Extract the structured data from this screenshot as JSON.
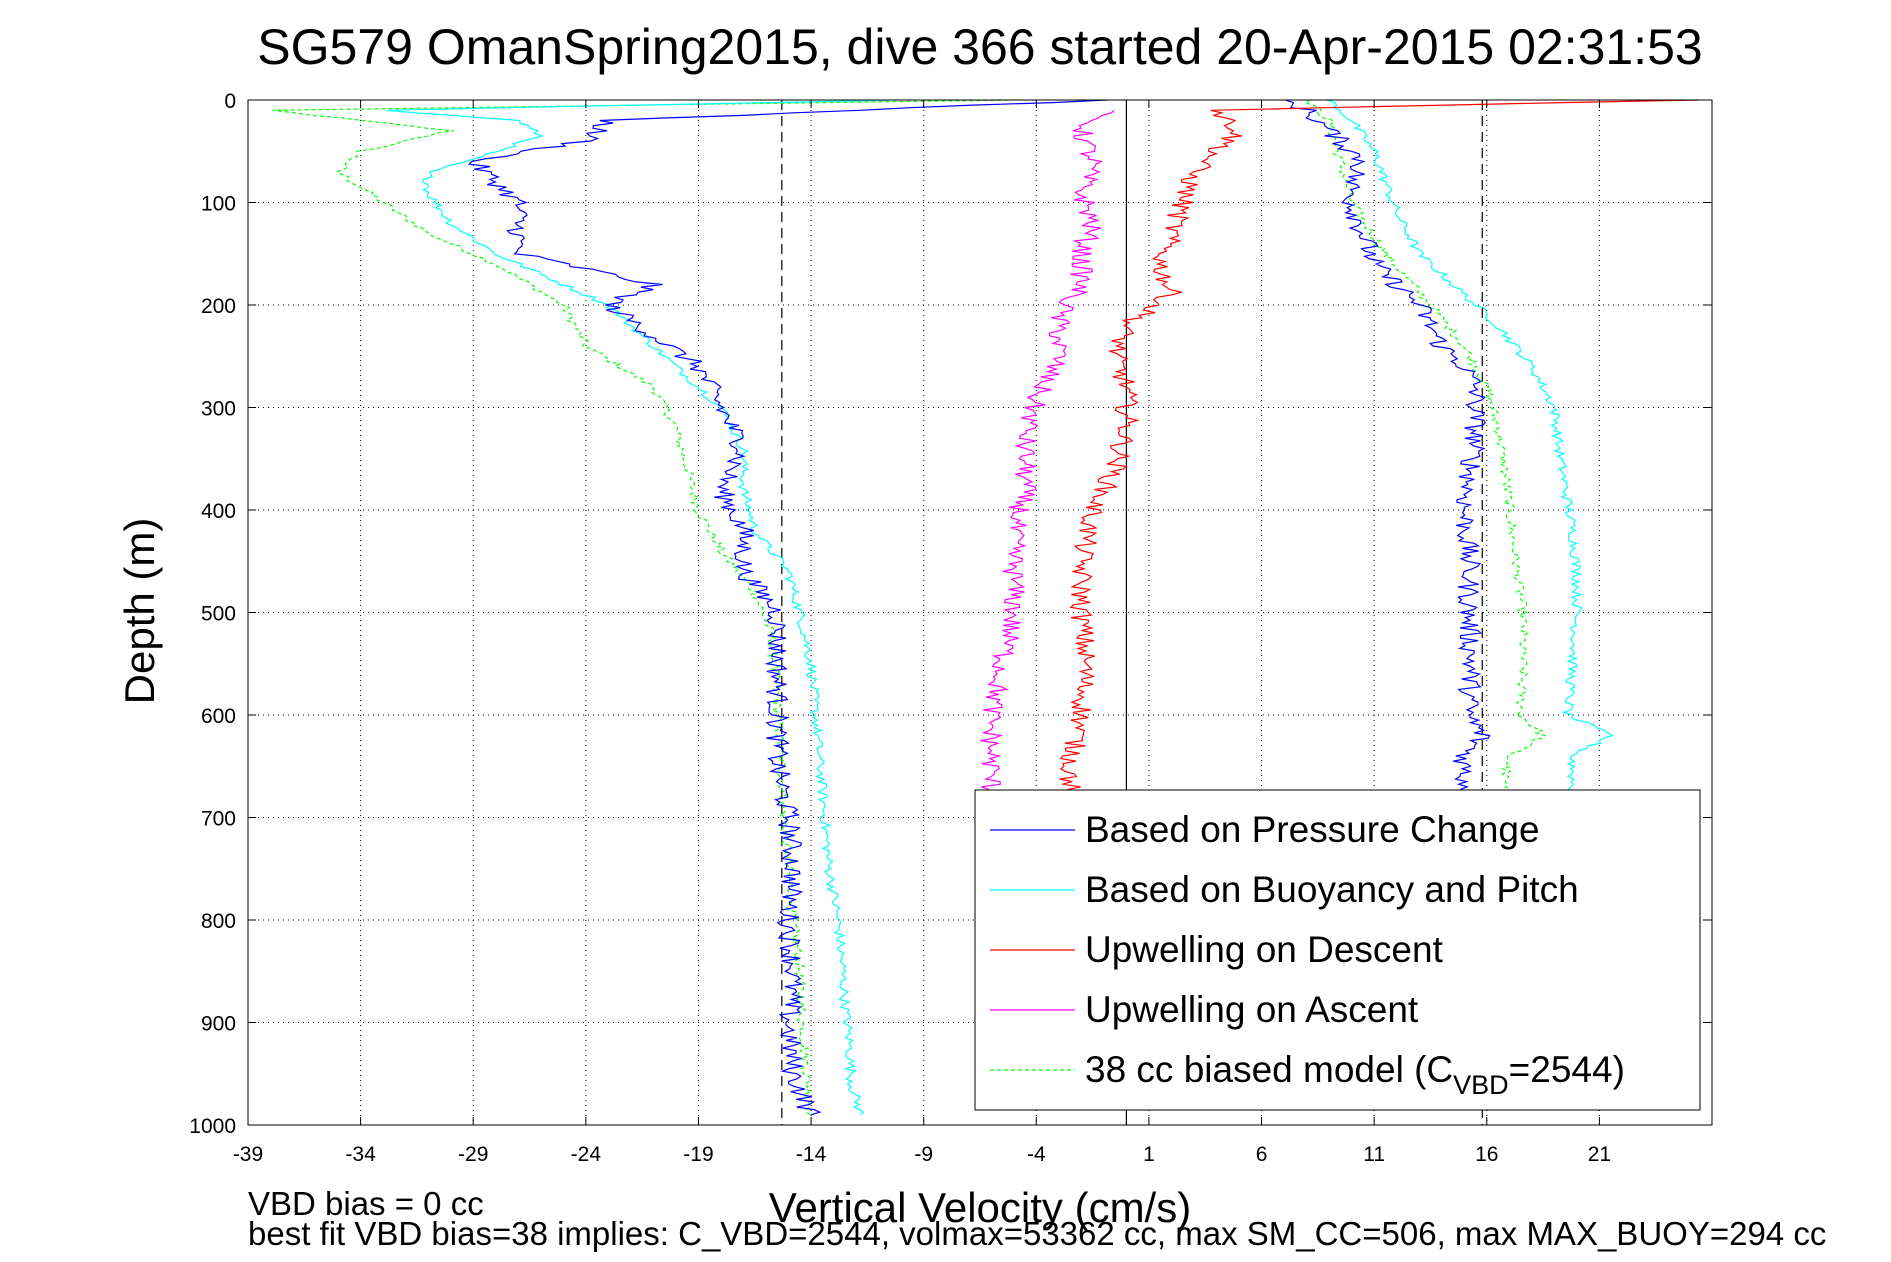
{
  "chart_data": {
    "type": "line",
    "title": "SG579 OmanSpring2015, dive 366 started 20-Apr-2015 02:31:53",
    "xlabel": "Vertical Velocity (cm/s)",
    "ylabel": "Depth (m)",
    "xlim": [
      -39,
      26
    ],
    "ylim": [
      0,
      1000
    ],
    "y_reversed": true,
    "grid": true,
    "x_ticks": [
      -39,
      -34,
      -29,
      -24,
      -19,
      -14,
      -9,
      -4,
      1,
      6,
      11,
      16,
      21
    ],
    "y_ticks": [
      0,
      100,
      200,
      300,
      400,
      500,
      600,
      700,
      800,
      900,
      1000
    ],
    "zero_line_x": 0,
    "reference_lines_x": [
      -15.3,
      15.8
    ],
    "legend": {
      "position": "bottom-right",
      "entries": [
        {
          "label": "Based on Pressure Change",
          "color": "#0000ff",
          "style": "solid"
        },
        {
          "label": "Based on Buoyancy and Pitch",
          "color": "#00ffff",
          "style": "solid"
        },
        {
          "label": "Upwelling on Descent",
          "color": "#ff0000",
          "style": "solid"
        },
        {
          "label": "Upwelling on Ascent",
          "color": "#ff00ff",
          "style": "solid"
        },
        {
          "label_prefix": "38 cc biased model (C",
          "label_sub": "VBD",
          "label_suffix": "=2544)",
          "color": "#00ff00",
          "style": "dashed"
        }
      ]
    },
    "series": [
      {
        "name": "Based on Pressure Change",
        "branch": "descent",
        "color": "#0000ff",
        "depth": [
          0,
          20,
          40,
          60,
          80,
          100,
          120,
          150,
          180,
          200,
          230,
          260,
          300,
          340,
          380,
          420,
          460,
          500,
          550,
          600,
          650,
          700,
          750,
          800,
          850,
          900,
          950,
          990
        ],
        "velocity": [
          -1,
          -23,
          -24,
          -29,
          -28,
          -27,
          -27,
          -27,
          -21,
          -23,
          -21,
          -19,
          -18,
          -17,
          -18,
          -17,
          -17,
          -15.5,
          -15.5,
          -15.5,
          -15.5,
          -15,
          -14.8,
          -15,
          -14.8,
          -15,
          -14.8,
          -14
        ]
      },
      {
        "name": "Based on Buoyancy and Pitch",
        "branch": "descent",
        "color": "#00ffff",
        "depth": [
          0,
          10,
          20,
          35,
          50,
          70,
          90,
          120,
          150,
          180,
          200,
          240,
          280,
          300,
          340,
          380,
          420,
          460,
          500,
          550,
          600,
          650,
          700,
          750,
          800,
          850,
          880,
          920,
          960,
          990
        ],
        "velocity": [
          -10,
          -33,
          -27,
          -26,
          -28,
          -31,
          -31,
          -30,
          -28,
          -25,
          -23,
          -21,
          -19,
          -18,
          -17,
          -17,
          -16.5,
          -15,
          -14.5,
          -14,
          -13.8,
          -13.6,
          -13.4,
          -13.2,
          -12.8,
          -12.6,
          -12.5,
          -12.3,
          -12.2,
          -11.8
        ]
      },
      {
        "name": "38 cc biased model",
        "branch": "descent",
        "color": "#00ff00",
        "depth": [
          0,
          10,
          30,
          50,
          70,
          100,
          130,
          160,
          200,
          240,
          280,
          320,
          360,
          400,
          440,
          480,
          520,
          560,
          600,
          650,
          700,
          750,
          800,
          850,
          900,
          950,
          990
        ],
        "velocity": [
          -5,
          -38,
          -30,
          -34,
          -35,
          -33,
          -31,
          -28,
          -25,
          -24,
          -21,
          -20,
          -19.5,
          -19,
          -18,
          -16.5,
          -15.8,
          -15.6,
          -15.5,
          -15.3,
          -15.2,
          -15,
          -14.8,
          -14.5,
          -14.4,
          -14.2,
          -14
        ]
      },
      {
        "name": "Based on Pressure Change",
        "branch": "ascent",
        "color": "#0000ff",
        "depth": [
          0,
          10,
          30,
          60,
          80,
          100,
          130,
          160,
          200,
          240,
          260,
          280,
          320,
          360,
          400,
          450,
          500,
          550,
          600,
          620,
          640,
          660,
          680
        ],
        "velocity": [
          7,
          8,
          9,
          10.5,
          10,
          10,
          10.5,
          11,
          13,
          14,
          15,
          15.5,
          15.5,
          15.3,
          15,
          15.2,
          15.2,
          15.3,
          15.2,
          15.8,
          15,
          15,
          15.2
        ]
      },
      {
        "name": "Based on Buoyancy and Pitch",
        "branch": "ascent",
        "color": "#00ffff",
        "depth": [
          0,
          20,
          50,
          80,
          110,
          150,
          190,
          220,
          260,
          300,
          340,
          380,
          420,
          460,
          500,
          550,
          600,
          620,
          640,
          660,
          680
        ],
        "velocity": [
          9,
          10,
          11,
          11.5,
          12,
          13,
          15,
          16.5,
          18,
          19,
          19.2,
          19.5,
          19.8,
          20,
          20,
          19.8,
          19.6,
          21.5,
          19.8,
          19.8,
          19.8
        ]
      },
      {
        "name": "38 cc biased model",
        "branch": "ascent",
        "color": "#00ff00",
        "depth": [
          0,
          20,
          60,
          100,
          150,
          200,
          240,
          280,
          320,
          360,
          400,
          450,
          500,
          550,
          600,
          620,
          640,
          660,
          680
        ],
        "velocity": [
          8,
          9,
          9.5,
          10,
          11.5,
          13.5,
          15,
          16,
          16.5,
          16.8,
          17,
          17.3,
          17.6,
          17.6,
          17.5,
          18.5,
          17,
          16.8,
          16.8
        ]
      },
      {
        "name": "Upwelling on Descent",
        "color": "#ff0000",
        "depth": [
          0,
          10,
          30,
          50,
          70,
          100,
          130,
          160,
          190,
          220,
          250,
          280,
          320,
          360,
          400,
          450,
          500,
          550,
          600,
          650,
          680
        ],
        "velocity": [
          25,
          4,
          5,
          4,
          3,
          2.5,
          2,
          1.5,
          2,
          0,
          -0.5,
          0,
          0,
          -0.5,
          -1.5,
          -2,
          -2,
          -1.8,
          -2,
          -2.5,
          -2.5
        ]
      },
      {
        "name": "Upwelling on Ascent",
        "color": "#ff00ff",
        "depth": [
          10,
          30,
          60,
          90,
          120,
          150,
          180,
          210,
          250,
          290,
          330,
          380,
          420,
          460,
          500,
          550,
          600,
          630,
          660,
          680
        ],
        "velocity": [
          -1,
          -2,
          -1.5,
          -2,
          -1.5,
          -2,
          -2,
          -3,
          -3,
          -4,
          -4.5,
          -4.5,
          -5,
          -5,
          -5,
          -5.5,
          -6,
          -6,
          -6,
          -6
        ]
      }
    ],
    "annotations": {
      "bottom_line1": "VBD bias = 0 cc",
      "bottom_line2": "best fit VBD bias=38 implies: C_VBD=2544, volmax=53362 cc, max SM_CC=506, max MAX_BUOY=294 cc"
    }
  }
}
